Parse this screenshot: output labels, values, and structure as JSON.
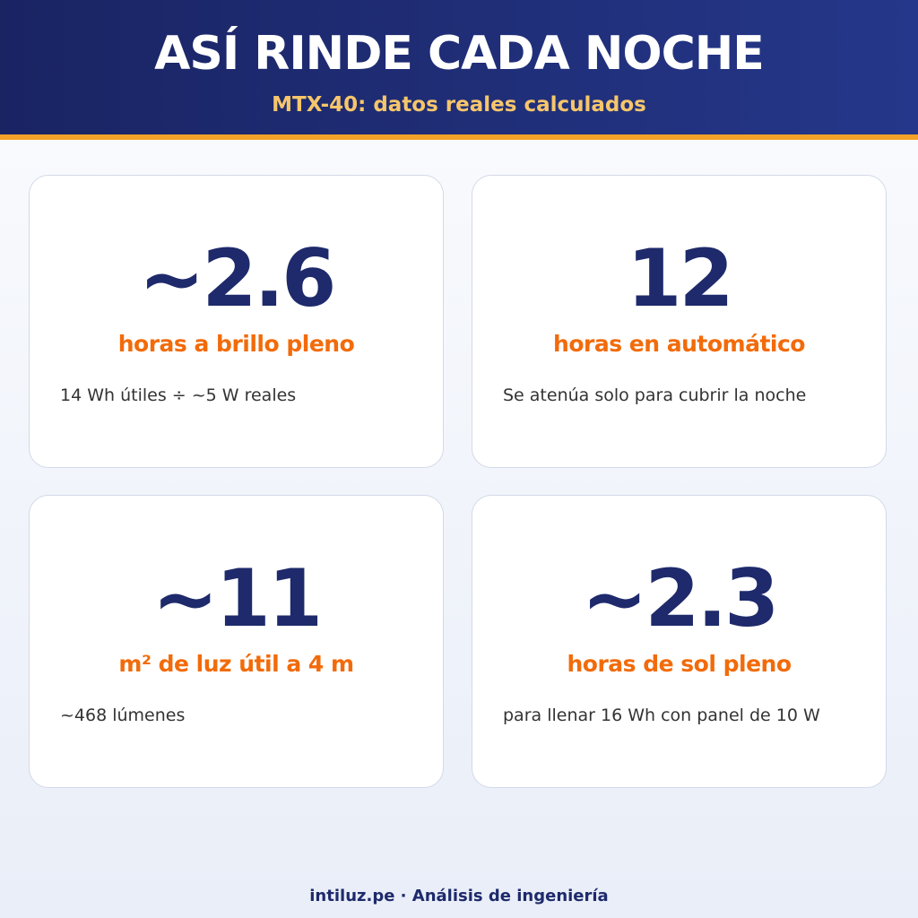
{
  "header": {
    "title": "ASÍ RINDE CADA NOCHE",
    "subtitle": "MTX-40: datos reales calculados"
  },
  "cards": [
    {
      "value": "~2.6",
      "label": "horas a brillo pleno",
      "note": "14 Wh útiles ÷ ~5 W reales"
    },
    {
      "value": "12",
      "label": "horas en automático",
      "note": "Se atenúa solo para cubrir la noche"
    },
    {
      "value": "~11",
      "label": "m² de luz útil a 4 m",
      "note": "~468 lúmenes"
    },
    {
      "value": "~2.3",
      "label": "horas de sol pleno",
      "note": "para llenar 16 Wh con panel de 10 W"
    }
  ],
  "footer": {
    "text": "intiluz.pe · Análisis de ingeniería"
  }
}
